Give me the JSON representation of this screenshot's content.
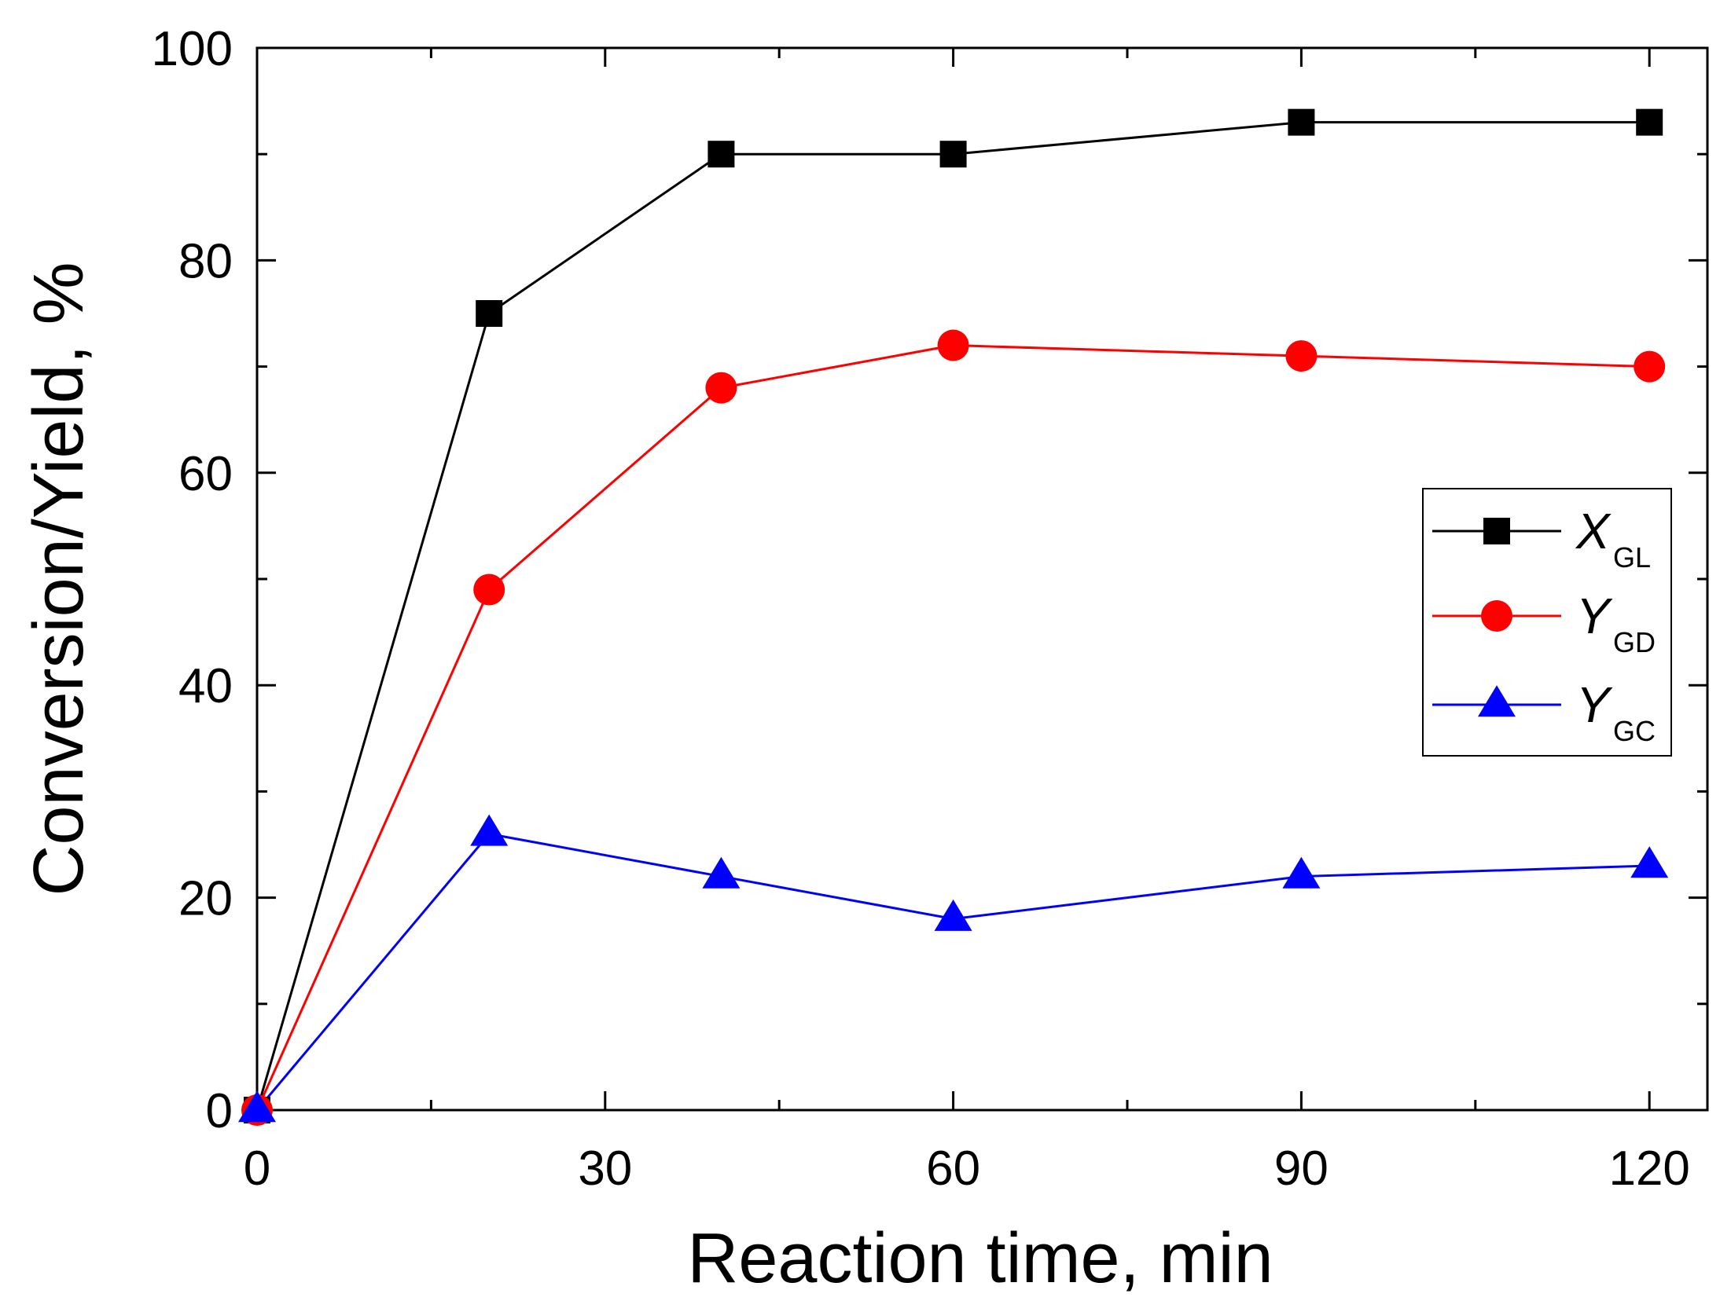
{
  "chart_data": {
    "type": "line",
    "title": "",
    "xlabel": "Reaction time, min",
    "ylabel": "Conversion/Yield, %",
    "xlim": [
      0,
      125
    ],
    "ylim": [
      0,
      100
    ],
    "xticks": [
      0,
      30,
      60,
      90,
      120
    ],
    "xticks_minor": [
      15,
      45,
      75,
      105
    ],
    "yticks": [
      0,
      20,
      40,
      60,
      80,
      100
    ],
    "yticks_minor": [
      10,
      30,
      50,
      70,
      90
    ],
    "x": [
      0,
      20,
      40,
      60,
      90,
      120
    ],
    "series": [
      {
        "name": "X",
        "subscript": "GL",
        "color": "#000000",
        "marker": "square",
        "values": [
          0,
          75,
          90,
          90,
          93,
          93
        ]
      },
      {
        "name": "Y",
        "subscript": "GD",
        "color": "#ff0000",
        "marker": "circle",
        "values": [
          0,
          49,
          68,
          72,
          71,
          70
        ]
      },
      {
        "name": "Y",
        "subscript": "GC",
        "color": "#0000ff",
        "marker": "triangle",
        "values": [
          0,
          26,
          22,
          18,
          22,
          23
        ]
      }
    ],
    "legend_position": "right",
    "grid": false
  }
}
